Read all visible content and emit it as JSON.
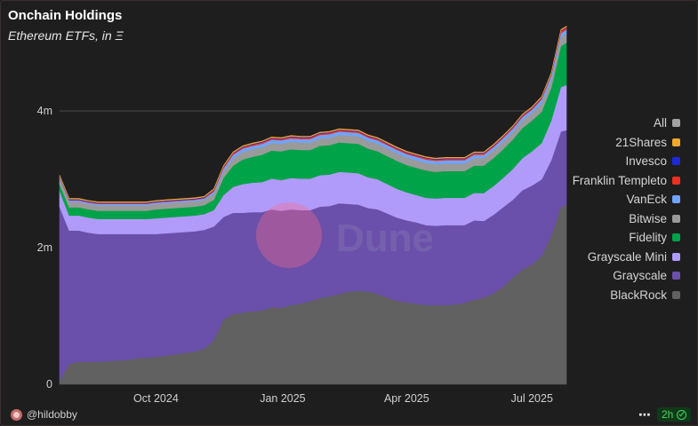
{
  "title": "Onchain Holdings",
  "subtitle": "Ethereum ETFs, in Ξ",
  "footer": {
    "user": "@hildobby",
    "refresh": "2h"
  },
  "watermark": "Dune",
  "chart_data": {
    "type": "area",
    "stacked": true,
    "x": [
      "2024-07-23",
      "2024-07-30",
      "2024-08-06",
      "2024-08-13",
      "2024-08-20",
      "2024-08-27",
      "2024-09-03",
      "2024-09-10",
      "2024-09-17",
      "2024-09-24",
      "2024-10-01",
      "2024-10-08",
      "2024-10-15",
      "2024-10-22",
      "2024-10-29",
      "2024-11-05",
      "2024-11-12",
      "2024-11-19",
      "2024-11-26",
      "2024-12-03",
      "2024-12-10",
      "2024-12-17",
      "2024-12-24",
      "2024-12-31",
      "2025-01-07",
      "2025-01-14",
      "2025-01-21",
      "2025-01-28",
      "2025-02-04",
      "2025-02-11",
      "2025-02-18",
      "2025-02-25",
      "2025-03-04",
      "2025-03-11",
      "2025-03-18",
      "2025-03-25",
      "2025-04-01",
      "2025-04-08",
      "2025-04-15",
      "2025-04-22",
      "2025-04-29",
      "2025-05-06",
      "2025-05-13",
      "2025-05-20",
      "2025-05-27",
      "2025-06-03",
      "2025-06-10",
      "2025-06-17",
      "2025-06-24",
      "2025-07-01",
      "2025-07-08",
      "2025-07-15",
      "2025-07-22",
      "2025-07-26"
    ],
    "series": [
      {
        "name": "BlackRock",
        "color": "#616161",
        "values": [
          0.05,
          0.3,
          0.33,
          0.33,
          0.33,
          0.34,
          0.35,
          0.36,
          0.38,
          0.39,
          0.4,
          0.42,
          0.44,
          0.46,
          0.48,
          0.52,
          0.65,
          0.95,
          1.03,
          1.05,
          1.07,
          1.08,
          1.13,
          1.12,
          1.16,
          1.18,
          1.22,
          1.26,
          1.29,
          1.32,
          1.36,
          1.37,
          1.36,
          1.32,
          1.27,
          1.22,
          1.2,
          1.18,
          1.16,
          1.16,
          1.16,
          1.17,
          1.19,
          1.24,
          1.27,
          1.33,
          1.43,
          1.56,
          1.68,
          1.76,
          1.88,
          2.18,
          2.6,
          2.62
        ]
      },
      {
        "name": "Grayscale",
        "color": "#6a50aa",
        "values": [
          2.55,
          1.95,
          1.92,
          1.89,
          1.87,
          1.86,
          1.85,
          1.84,
          1.82,
          1.81,
          1.8,
          1.79,
          1.78,
          1.77,
          1.76,
          1.74,
          1.66,
          1.5,
          1.48,
          1.46,
          1.45,
          1.44,
          1.43,
          1.42,
          1.4,
          1.37,
          1.33,
          1.34,
          1.32,
          1.33,
          1.28,
          1.26,
          1.22,
          1.24,
          1.23,
          1.22,
          1.2,
          1.19,
          1.17,
          1.16,
          1.17,
          1.16,
          1.14,
          1.16,
          1.12,
          1.15,
          1.16,
          1.14,
          1.16,
          1.15,
          1.12,
          1.1,
          1.1,
          1.1
        ]
      },
      {
        "name": "Grayscale Mini",
        "color": "#b19bfa",
        "values": [
          0.23,
          0.22,
          0.22,
          0.22,
          0.22,
          0.22,
          0.22,
          0.22,
          0.22,
          0.22,
          0.23,
          0.23,
          0.23,
          0.23,
          0.23,
          0.23,
          0.24,
          0.32,
          0.38,
          0.42,
          0.43,
          0.44,
          0.45,
          0.45,
          0.46,
          0.46,
          0.46,
          0.46,
          0.46,
          0.46,
          0.46,
          0.46,
          0.45,
          0.44,
          0.43,
          0.42,
          0.41,
          0.4,
          0.4,
          0.4,
          0.4,
          0.4,
          0.4,
          0.4,
          0.41,
          0.42,
          0.43,
          0.45,
          0.47,
          0.5,
          0.53,
          0.58,
          0.65,
          0.66
        ]
      },
      {
        "name": "Fidelity",
        "color": "#00a348",
        "values": [
          0.1,
          0.12,
          0.12,
          0.12,
          0.12,
          0.12,
          0.12,
          0.12,
          0.12,
          0.12,
          0.13,
          0.13,
          0.13,
          0.13,
          0.13,
          0.13,
          0.15,
          0.25,
          0.31,
          0.36,
          0.38,
          0.4,
          0.41,
          0.42,
          0.42,
          0.42,
          0.42,
          0.43,
          0.43,
          0.43,
          0.43,
          0.43,
          0.42,
          0.41,
          0.41,
          0.41,
          0.4,
          0.4,
          0.4,
          0.39,
          0.39,
          0.39,
          0.39,
          0.4,
          0.4,
          0.41,
          0.42,
          0.43,
          0.44,
          0.45,
          0.46,
          0.48,
          0.6,
          0.62
        ]
      },
      {
        "name": "Bitwise",
        "color": "#9a9a9a",
        "values": [
          0.08,
          0.08,
          0.08,
          0.08,
          0.08,
          0.08,
          0.08,
          0.08,
          0.08,
          0.08,
          0.08,
          0.08,
          0.08,
          0.08,
          0.08,
          0.08,
          0.09,
          0.1,
          0.11,
          0.11,
          0.11,
          0.11,
          0.11,
          0.11,
          0.11,
          0.11,
          0.11,
          0.11,
          0.11,
          0.11,
          0.11,
          0.11,
          0.11,
          0.11,
          0.11,
          0.11,
          0.11,
          0.11,
          0.11,
          0.11,
          0.11,
          0.11,
          0.11,
          0.11,
          0.11,
          0.11,
          0.11,
          0.11,
          0.11,
          0.11,
          0.12,
          0.12,
          0.13,
          0.13
        ]
      },
      {
        "name": "VanEck",
        "color": "#6fa4ff",
        "values": [
          0.02,
          0.02,
          0.02,
          0.02,
          0.02,
          0.02,
          0.02,
          0.02,
          0.02,
          0.02,
          0.02,
          0.02,
          0.02,
          0.02,
          0.02,
          0.02,
          0.03,
          0.04,
          0.05,
          0.05,
          0.05,
          0.05,
          0.05,
          0.05,
          0.05,
          0.05,
          0.05,
          0.05,
          0.05,
          0.05,
          0.05,
          0.05,
          0.05,
          0.05,
          0.05,
          0.05,
          0.05,
          0.05,
          0.05,
          0.05,
          0.05,
          0.05,
          0.05,
          0.05,
          0.05,
          0.05,
          0.05,
          0.05,
          0.05,
          0.05,
          0.06,
          0.06,
          0.06,
          0.06
        ]
      },
      {
        "name": "Franklin Templeto",
        "color": "#e8311f",
        "values": [
          0.01,
          0.01,
          0.01,
          0.01,
          0.01,
          0.01,
          0.01,
          0.01,
          0.01,
          0.01,
          0.01,
          0.01,
          0.01,
          0.01,
          0.01,
          0.01,
          0.02,
          0.02,
          0.02,
          0.02,
          0.02,
          0.02,
          0.02,
          0.02,
          0.02,
          0.02,
          0.02,
          0.02,
          0.02,
          0.02,
          0.02,
          0.02,
          0.02,
          0.02,
          0.02,
          0.02,
          0.02,
          0.02,
          0.02,
          0.02,
          0.02,
          0.02,
          0.02,
          0.02,
          0.02,
          0.02,
          0.02,
          0.02,
          0.02,
          0.02,
          0.02,
          0.02,
          0.03,
          0.03
        ]
      },
      {
        "name": "Invesco",
        "color": "#1c2ad6",
        "values": [
          0.01,
          0.01,
          0.01,
          0.01,
          0.01,
          0.01,
          0.01,
          0.01,
          0.01,
          0.01,
          0.01,
          0.01,
          0.01,
          0.01,
          0.01,
          0.01,
          0.01,
          0.01,
          0.01,
          0.01,
          0.01,
          0.01,
          0.01,
          0.01,
          0.01,
          0.01,
          0.01,
          0.01,
          0.01,
          0.01,
          0.01,
          0.01,
          0.01,
          0.01,
          0.01,
          0.01,
          0.01,
          0.01,
          0.01,
          0.01,
          0.01,
          0.01,
          0.01,
          0.01,
          0.01,
          0.01,
          0.01,
          0.01,
          0.01,
          0.01,
          0.01,
          0.01,
          0.01,
          0.01
        ]
      },
      {
        "name": "21Shares",
        "color": "#f0a82a",
        "values": [
          0.01,
          0.01,
          0.01,
          0.01,
          0.01,
          0.01,
          0.01,
          0.01,
          0.01,
          0.01,
          0.01,
          0.01,
          0.01,
          0.01,
          0.01,
          0.01,
          0.01,
          0.01,
          0.01,
          0.01,
          0.01,
          0.01,
          0.01,
          0.01,
          0.01,
          0.01,
          0.01,
          0.01,
          0.01,
          0.01,
          0.01,
          0.01,
          0.01,
          0.01,
          0.01,
          0.01,
          0.01,
          0.01,
          0.01,
          0.01,
          0.01,
          0.01,
          0.01,
          0.01,
          0.01,
          0.01,
          0.01,
          0.01,
          0.01,
          0.01,
          0.01,
          0.01,
          0.01,
          0.01
        ]
      }
    ],
    "legend_extra": {
      "name": "All",
      "color": "#a3a3a3"
    },
    "legend_position": "right",
    "y_ticks": [
      {
        "value": 0,
        "label": "0"
      },
      {
        "value": 2000000,
        "label": "2m"
      },
      {
        "value": 4000000,
        "label": "4m"
      }
    ],
    "y_unit_multiplier": 1000000,
    "ylim": [
      0,
      5000000
    ],
    "x_ticks": [
      {
        "date": "2024-10-01",
        "label": "Oct 2024"
      },
      {
        "date": "2025-01-01",
        "label": "Jan 2025"
      },
      {
        "date": "2025-04-01",
        "label": "Apr 2025"
      },
      {
        "date": "2025-07-01",
        "label": "Jul 2025"
      }
    ],
    "gridlines": "horizontal"
  }
}
